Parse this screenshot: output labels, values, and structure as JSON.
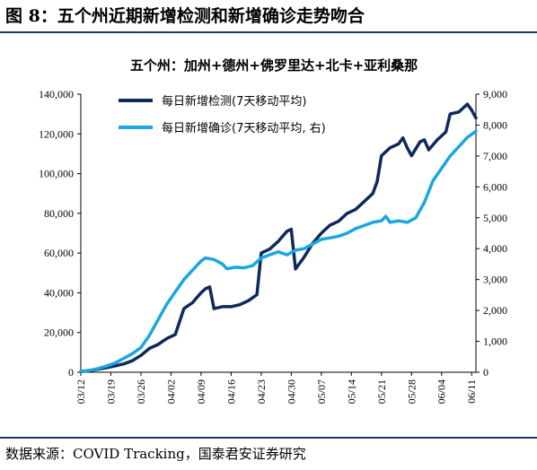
{
  "figure": {
    "title": "图 8：五个州近期新增检测和新增确诊走势吻合",
    "source": "数据来源：COVID Tracking，国泰君安证券研究"
  },
  "chart_data": {
    "type": "line",
    "title": "五个州：加州+德州+佛罗里达+北卡+亚利桑那",
    "x_ticks": [
      "03/12",
      "03/19",
      "03/26",
      "04/02",
      "04/09",
      "04/16",
      "04/23",
      "04/30",
      "05/07",
      "05/14",
      "05/21",
      "05/28",
      "06/04",
      "06/11"
    ],
    "y_left": {
      "min": 0,
      "max": 140000,
      "step": 20000,
      "tick_labels": [
        "0",
        "20,000",
        "40,000",
        "60,000",
        "80,000",
        "100,000",
        "120,000",
        "140,000"
      ]
    },
    "y_right": {
      "min": 0,
      "max": 9000,
      "step": 1000,
      "tick_labels": [
        "0",
        "1,000",
        "2,000",
        "3,000",
        "4,000",
        "5,000",
        "6,000",
        "7,000",
        "8,000",
        "9,000"
      ]
    },
    "legend_position": "top-left",
    "grid": false,
    "series": [
      {
        "name": "每日新增检测(7天移动平均)",
        "axis": "left",
        "color": "#0e2a5c",
        "points": [
          [
            "03/12",
            300
          ],
          [
            "03/14",
            800
          ],
          [
            "03/16",
            1500
          ],
          [
            "03/18",
            2300
          ],
          [
            "03/20",
            3200
          ],
          [
            "03/22",
            4200
          ],
          [
            "03/24",
            5800
          ],
          [
            "03/26",
            8500
          ],
          [
            "03/28",
            12000
          ],
          [
            "03/30",
            14000
          ],
          [
            "04/01",
            17000
          ],
          [
            "04/03",
            19000
          ],
          [
            "04/05",
            32000
          ],
          [
            "04/07",
            35000
          ],
          [
            "04/09",
            40000
          ],
          [
            "04/10",
            42000
          ],
          [
            "04/11",
            43000
          ],
          [
            "04/12",
            32000
          ],
          [
            "04/14",
            33000
          ],
          [
            "04/16",
            33000
          ],
          [
            "04/18",
            34000
          ],
          [
            "04/20",
            36000
          ],
          [
            "04/22",
            39000
          ],
          [
            "04/23",
            60000
          ],
          [
            "04/25",
            62000
          ],
          [
            "04/27",
            66000
          ],
          [
            "04/29",
            71000
          ],
          [
            "04/30",
            72000
          ],
          [
            "05/01",
            52000
          ],
          [
            "05/03",
            58000
          ],
          [
            "05/05",
            65000
          ],
          [
            "05/07",
            70000
          ],
          [
            "05/09",
            74000
          ],
          [
            "05/11",
            76000
          ],
          [
            "05/13",
            80000
          ],
          [
            "05/15",
            82000
          ],
          [
            "05/17",
            86000
          ],
          [
            "05/19",
            90000
          ],
          [
            "05/20",
            96000
          ],
          [
            "05/21",
            109000
          ],
          [
            "05/23",
            113000
          ],
          [
            "05/25",
            115000
          ],
          [
            "05/26",
            118000
          ],
          [
            "05/27",
            113000
          ],
          [
            "05/28",
            109000
          ],
          [
            "05/30",
            116000
          ],
          [
            "05/31",
            117000
          ],
          [
            "06/01",
            112000
          ],
          [
            "06/03",
            117000
          ],
          [
            "06/05",
            121000
          ],
          [
            "06/06",
            130000
          ],
          [
            "06/08",
            131000
          ],
          [
            "06/09",
            133000
          ],
          [
            "06/10",
            135000
          ],
          [
            "06/11",
            132000
          ],
          [
            "06/12",
            128000
          ]
        ]
      },
      {
        "name": "每日新增确诊(7天移动平均, 右)",
        "axis": "right",
        "color": "#1aa7e0",
        "points": [
          [
            "03/12",
            30
          ],
          [
            "03/14",
            60
          ],
          [
            "03/16",
            120
          ],
          [
            "03/18",
            200
          ],
          [
            "03/20",
            300
          ],
          [
            "03/22",
            450
          ],
          [
            "03/24",
            600
          ],
          [
            "03/26",
            800
          ],
          [
            "03/28",
            1200
          ],
          [
            "03/30",
            1700
          ],
          [
            "04/01",
            2200
          ],
          [
            "04/03",
            2600
          ],
          [
            "04/05",
            3000
          ],
          [
            "04/07",
            3300
          ],
          [
            "04/09",
            3600
          ],
          [
            "04/10",
            3700
          ],
          [
            "04/12",
            3650
          ],
          [
            "04/14",
            3500
          ],
          [
            "04/15",
            3350
          ],
          [
            "04/17",
            3400
          ],
          [
            "04/19",
            3380
          ],
          [
            "04/21",
            3450
          ],
          [
            "04/23",
            3700
          ],
          [
            "04/25",
            3800
          ],
          [
            "04/27",
            3900
          ],
          [
            "04/29",
            3800
          ],
          [
            "05/01",
            3950
          ],
          [
            "05/03",
            4000
          ],
          [
            "05/05",
            4150
          ],
          [
            "05/07",
            4300
          ],
          [
            "05/09",
            4350
          ],
          [
            "05/11",
            4400
          ],
          [
            "05/13",
            4500
          ],
          [
            "05/15",
            4650
          ],
          [
            "05/17",
            4750
          ],
          [
            "05/19",
            4850
          ],
          [
            "05/21",
            4900
          ],
          [
            "05/22",
            5050
          ],
          [
            "05/23",
            4850
          ],
          [
            "05/25",
            4900
          ],
          [
            "05/27",
            4850
          ],
          [
            "05/29",
            5000
          ],
          [
            "05/31",
            5500
          ],
          [
            "06/02",
            6200
          ],
          [
            "06/04",
            6600
          ],
          [
            "06/06",
            7000
          ],
          [
            "06/08",
            7300
          ],
          [
            "06/10",
            7600
          ],
          [
            "06/11",
            7700
          ],
          [
            "06/12",
            7800
          ]
        ]
      }
    ]
  }
}
